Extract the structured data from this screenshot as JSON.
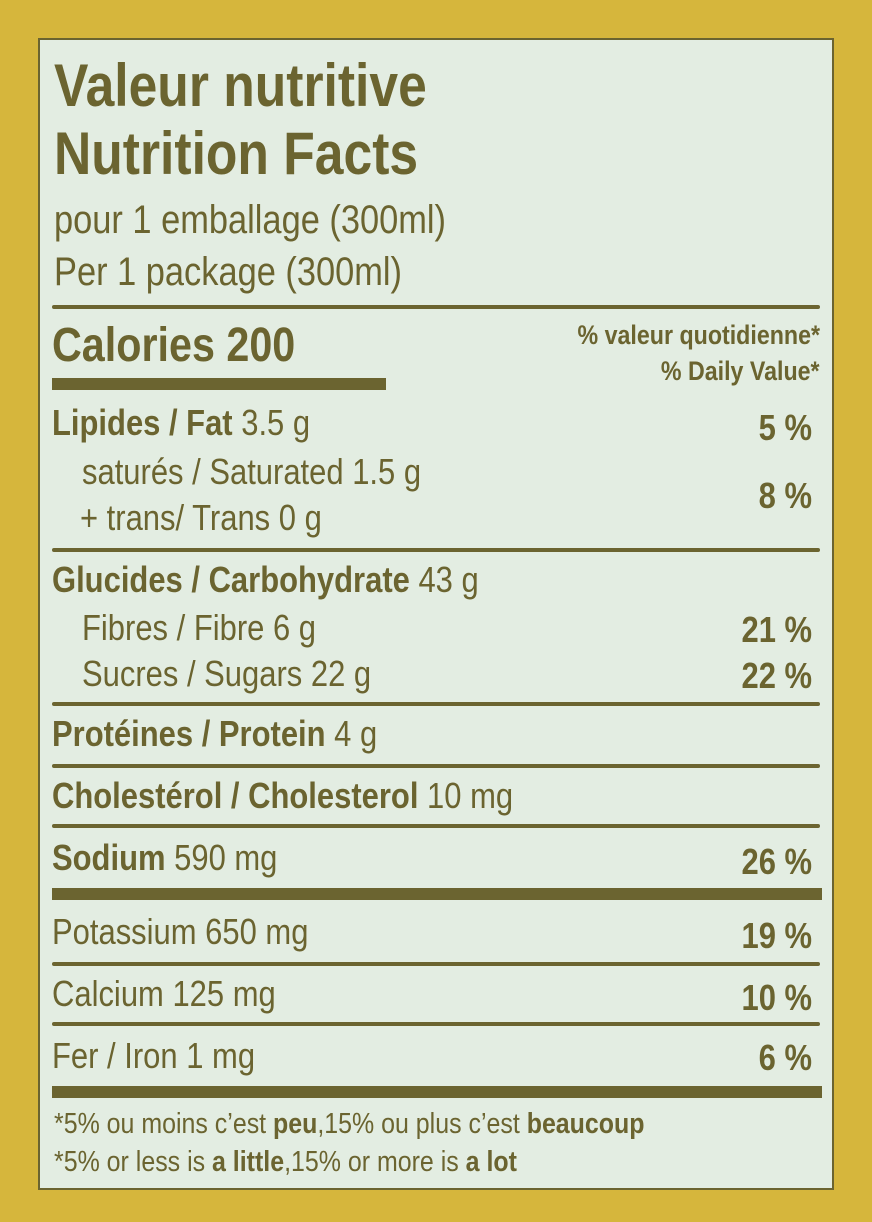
{
  "label": {
    "title_fr": "Valeur nutritive",
    "title_en": "Nutrition Facts",
    "serving_fr": "pour 1 emballage (300ml)",
    "serving_en": "Per 1 package (300ml)",
    "calories_label": "Calories",
    "calories_value": "200",
    "dv_header_fr": "% valeur quotidienne*",
    "dv_header_en": "% Daily Value*",
    "rows": [
      {
        "name": "Lipides / Fat",
        "amount": "3.5 g",
        "dv": "5 %"
      },
      {
        "name": "saturés / Saturated",
        "amount": "1.5 g",
        "dv": "8 %"
      },
      {
        "name": "+ trans/ Trans",
        "amount": "0 g"
      },
      {
        "name": "Glucides / Carbohydrate",
        "amount": "43 g"
      },
      {
        "name": "Fibres / Fibre",
        "amount": "6 g",
        "dv": "21 %"
      },
      {
        "name": "Sucres / Sugars",
        "amount": "22 g",
        "dv": "22 %"
      },
      {
        "name": "Protéines / Protein",
        "amount": "4 g"
      },
      {
        "name": "Cholestérol / Cholesterol",
        "amount": "10 mg"
      },
      {
        "name": "Sodium",
        "amount": "590 mg",
        "dv": "26 %"
      },
      {
        "name": "Potassium",
        "amount": "650 mg",
        "dv": "19 %"
      },
      {
        "name": "Calcium",
        "amount": "125 mg",
        "dv": "10 %"
      },
      {
        "name": "Fer / Iron",
        "amount": "1 mg",
        "dv": "6 %"
      }
    ],
    "footnote_fr": {
      "a": "*5% ou moins c’est ",
      "b": "peu",
      "c": ",15% ou plus c’est ",
      "d": "beaucoup"
    },
    "footnote_en": {
      "a": "*5% or less is ",
      "b": "a little",
      "c": ",15% or more is ",
      "d": "a lot"
    }
  },
  "colors": {
    "background": "#d6b63c",
    "panel": "#e3ede2",
    "ink": "#6b6430"
  }
}
